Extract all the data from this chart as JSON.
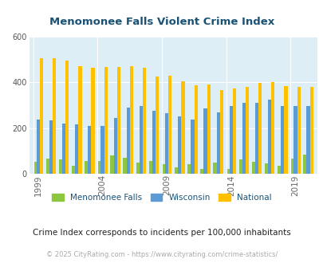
{
  "title": "Menomonee Falls Violent Crime Index",
  "years": [
    1999,
    2000,
    2001,
    2002,
    2003,
    2004,
    2005,
    2006,
    2007,
    2008,
    2009,
    2010,
    2011,
    2012,
    2013,
    2014,
    2015,
    2016,
    2017,
    2018,
    2019,
    2020
  ],
  "menomonee_falls": [
    52,
    65,
    63,
    35,
    55,
    55,
    78,
    70,
    50,
    55,
    43,
    28,
    43,
    20,
    47,
    22,
    62,
    52,
    45,
    35,
    65,
    82
  ],
  "wisconsin": [
    237,
    232,
    220,
    215,
    210,
    208,
    245,
    290,
    295,
    275,
    265,
    250,
    237,
    285,
    270,
    295,
    310,
    310,
    323,
    298,
    298,
    298
  ],
  "national": [
    508,
    507,
    497,
    470,
    465,
    468,
    468,
    473,
    463,
    425,
    430,
    405,
    388,
    391,
    365,
    375,
    382,
    398,
    400,
    383,
    379,
    379
  ],
  "colors": {
    "menomonee_falls": "#8dc63f",
    "wisconsin": "#5b9bd5",
    "national": "#ffc000",
    "background": "#deeef6",
    "title": "#1a5276",
    "text_dark": "#222222",
    "copyright_color": "#aaaaaa"
  },
  "ylim": [
    0,
    600
  ],
  "yticks": [
    0,
    200,
    400,
    600
  ],
  "xlabel_ticks": [
    1999,
    2004,
    2009,
    2014,
    2019
  ],
  "legend_labels": [
    "Menomonee Falls",
    "Wisconsin",
    "National"
  ],
  "subtitle": "Crime Index corresponds to incidents per 100,000 inhabitants",
  "copyright": "© 2025 CityRating.com - https://www.cityrating.com/crime-statistics/"
}
